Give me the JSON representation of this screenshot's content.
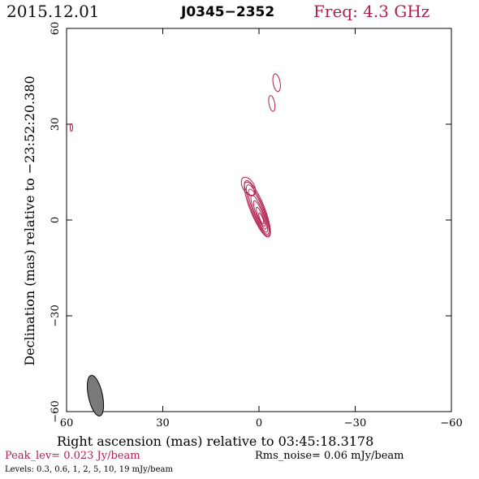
{
  "header": {
    "date": "2015.12.01",
    "source": "J0345−2352",
    "frequency": "Freq: 4.3 GHz"
  },
  "footer": {
    "peak": "Peak_lev=  0.023 Jy/beam",
    "rms": "Rms_noise= 0.06 mJy/beam",
    "levels": "Levels: 0.3, 0.6,    1,    2,    5,   10,   19 mJy/beam"
  },
  "colors": {
    "contour": "#b02050",
    "beam": "#7a7a7a",
    "frame": "#000000"
  },
  "chart_data": {
    "type": "contour",
    "xlabel": "Right ascension (mas) relative to 03:45:18.3178",
    "ylabel": "Declination (mas) relative to −23:52:20.380",
    "xlim": [
      60,
      -60
    ],
    "ylim": [
      -60,
      60
    ],
    "xticks": [
      60,
      30,
      0,
      -30,
      -60
    ],
    "xtick_labels": [
      "60",
      "30",
      "0",
      "−30",
      "−60"
    ],
    "yticks": [
      -60,
      -30,
      0,
      30,
      60
    ],
    "ytick_labels": [
      "−60",
      "−30",
      "0",
      "30",
      "60"
    ],
    "levels_mJy": [
      0.3,
      0.6,
      1,
      2,
      5,
      10,
      19
    ],
    "beam": {
      "x": 51,
      "y": -55,
      "major": 6.5,
      "minor": 2.2,
      "pa_deg": -12
    },
    "components": [
      {
        "name": "core",
        "x": 0.5,
        "y": 2,
        "contours": [
          {
            "cx": 0.5,
            "cy": 3.5,
            "rx": 2.2,
            "ry": 9.5,
            "angle": -22
          },
          {
            "cx": 0.3,
            "cy": 3.0,
            "rx": 1.9,
            "ry": 8.6,
            "angle": -22
          },
          {
            "cx": 0.1,
            "cy": 2.6,
            "rx": 1.6,
            "ry": 7.6,
            "angle": -22
          },
          {
            "cx": -0.1,
            "cy": 2.0,
            "rx": 1.3,
            "ry": 6.2,
            "angle": -22
          },
          {
            "cx": -0.3,
            "cy": 1.6,
            "rx": 1.0,
            "ry": 4.8,
            "angle": -22
          },
          {
            "cx": -0.5,
            "cy": 1.0,
            "rx": 0.7,
            "ry": 3.2,
            "angle": -22
          },
          {
            "cx": -0.7,
            "cy": 0.5,
            "rx": 0.45,
            "ry": 1.8,
            "angle": -22
          }
        ]
      },
      {
        "name": "jet-extension",
        "x": 3.5,
        "y": 10.5,
        "contours": [
          {
            "cx": 3.3,
            "cy": 10.5,
            "rx": 1.8,
            "ry": 3.2,
            "angle": -30
          },
          {
            "cx": 3.0,
            "cy": 9.8,
            "rx": 1.2,
            "ry": 2.3,
            "angle": -30
          }
        ]
      },
      {
        "name": "north-knot-1",
        "x": -5.5,
        "y": 43,
        "contours": [
          {
            "cx": -5.5,
            "cy": 43,
            "rx": 1.1,
            "ry": 2.8,
            "angle": -10
          }
        ]
      },
      {
        "name": "north-knot-2",
        "x": -4,
        "y": 36.5,
        "contours": [
          {
            "cx": -4,
            "cy": 36.5,
            "rx": 0.9,
            "ry": 2.5,
            "angle": -10
          }
        ]
      },
      {
        "name": "west-blob",
        "x": 58.5,
        "y": 29,
        "contours": [
          {
            "cx": 58.5,
            "cy": 29,
            "rx": 0.4,
            "ry": 1.2,
            "angle": 0
          }
        ]
      }
    ]
  }
}
